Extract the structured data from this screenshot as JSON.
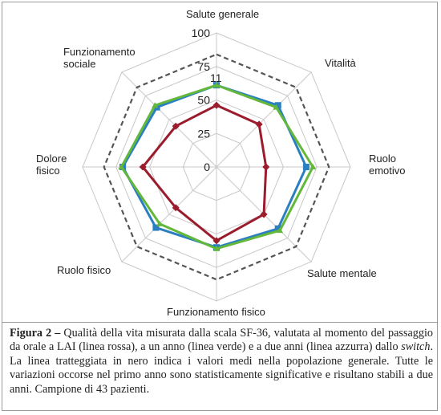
{
  "chart_data": {
    "type": "radar",
    "axes": [
      "Salute generale",
      "Vitalità",
      "Ruolo emotivo",
      "Salute mentale",
      "Funzionamento fisico",
      "Ruolo fisico",
      "Dolore fisico",
      "Funzionamento sociale"
    ],
    "axis_labels_display": [
      "Salute generale",
      "Vitalità",
      "Ruolo\nemotivo",
      "Salute mentale",
      "Funzionamento fisico",
      "Ruolo fisico",
      "Dolore\nfisico",
      "Funzionamento\nsociale"
    ],
    "ticks": [
      "0",
      "25",
      "50",
      "75",
      "100"
    ],
    "rlim": [
      0,
      100
    ],
    "series": [
      {
        "key": "reference",
        "color": "#555555",
        "dashed": true,
        "values": [
          84,
          84,
          84,
          84,
          84,
          84,
          84,
          84
        ]
      },
      {
        "key": "two_years",
        "color": "#2a7fc2",
        "values": [
          61,
          65,
          67,
          65,
          60,
          64,
          70,
          63
        ]
      },
      {
        "key": "one_year",
        "color": "#63b83c",
        "values": [
          61,
          63,
          72,
          67,
          61,
          60,
          71,
          65
        ]
      },
      {
        "key": "switch",
        "color": "#9b1c2c",
        "values": [
          46,
          45,
          37,
          50,
          55,
          43,
          55,
          43
        ]
      }
    ],
    "annotation": "11"
  },
  "caption": {
    "label": "Figura 2 –",
    "text_before": " Qualità della vita misurata dalla scala SF-36, valutata al momento del passaggio da orale a LAI (linea rossa), a un anno (linea verde) e a due anni (linea azzurra) dallo ",
    "italic_word": "switch",
    "text_after": ". La linea tratteggiata in nero indica i valori medi nella popolazione generale. Tutte le variazioni occorse nel primo anno sono statisticamente significative e risultano stabili a due anni. Campione di 43 pazienti."
  }
}
